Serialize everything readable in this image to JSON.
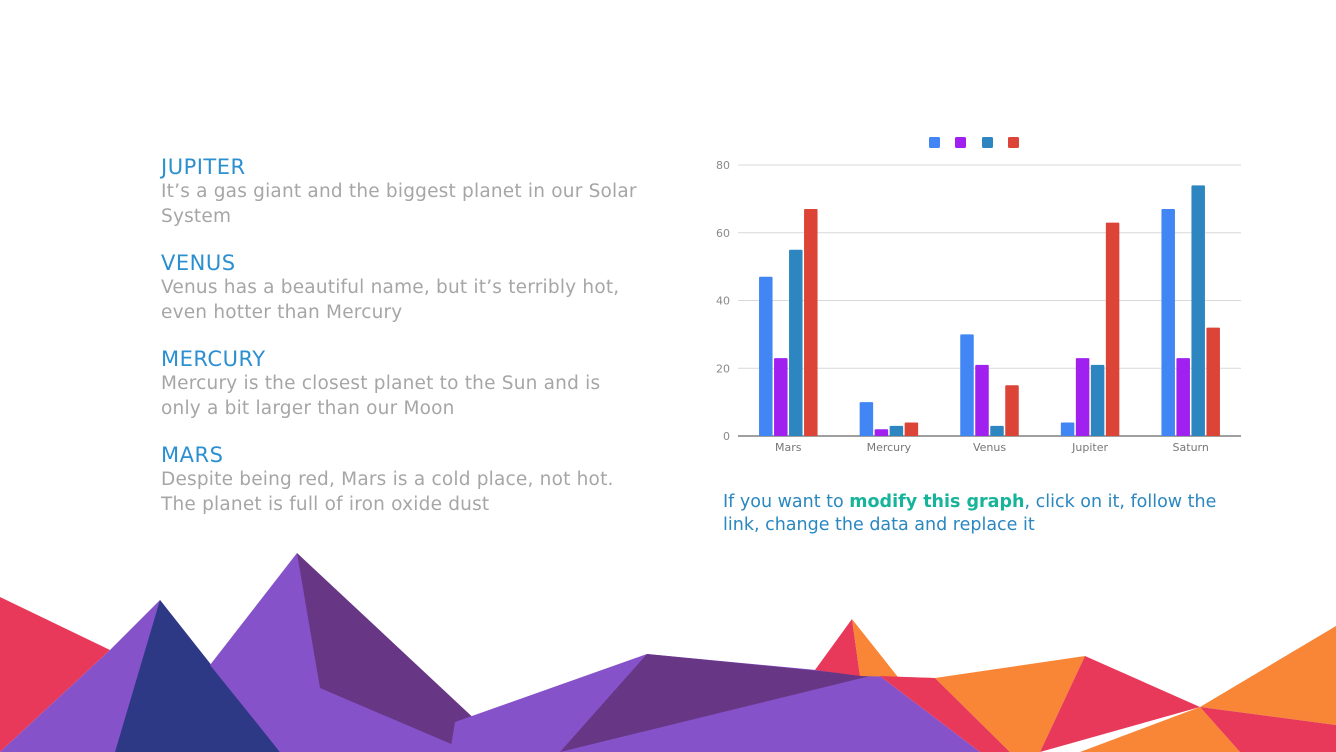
{
  "planets": [
    {
      "title": "JUPITER",
      "text": "It’s a gas giant and the biggest planet in our Solar System"
    },
    {
      "title": "VENUS",
      "text": "Venus has a beautiful name, but it’s terribly hot, even hotter than Mercury"
    },
    {
      "title": "MERCURY",
      "text": "Mercury is the closest planet to the Sun and is only a bit larger than our Moon"
    },
    {
      "title": "MARS",
      "text": "Despite being red, Mars is a cold place, not hot. The planet is full of iron oxide dust"
    }
  ],
  "note": {
    "prefix": "If you want to ",
    "bold": "modify this graph",
    "suffix": ", click on it, follow the link, change the data and replace it"
  },
  "colors": {
    "heading": "#2b8fd0",
    "body": "#a6a6a6",
    "note": "#2a87c0",
    "note_bold": "#17b39a"
  },
  "chart_data": {
    "type": "bar",
    "title": "",
    "xlabel": "",
    "ylabel": "",
    "categories": [
      "Mars",
      "Mercury",
      "Venus",
      "Jupiter",
      "Saturn"
    ],
    "series": [
      {
        "name": "",
        "color": "#4285f4",
        "values": [
          47,
          10,
          30,
          4,
          67
        ]
      },
      {
        "name": "",
        "color": "#a020f0",
        "values": [
          23,
          2,
          21,
          23,
          23
        ]
      },
      {
        "name": "",
        "color": "#2e86c1",
        "values": [
          55,
          3,
          3,
          21,
          74
        ]
      },
      {
        "name": "",
        "color": "#db4437",
        "values": [
          67,
          4,
          15,
          63,
          32
        ]
      }
    ],
    "ylim": [
      0,
      80
    ],
    "yticks": [
      0,
      20,
      40,
      60,
      80
    ],
    "grid": true,
    "legend_position": "top"
  }
}
